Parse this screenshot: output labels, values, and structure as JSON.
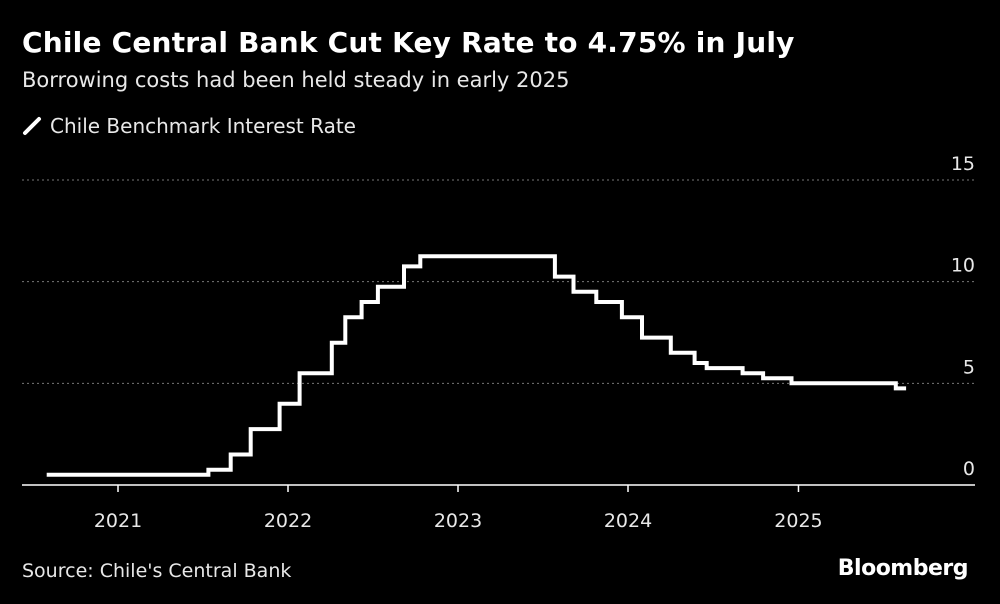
{
  "header": {
    "title": "Chile Central Bank Cut Key Rate to 4.75% in July",
    "subtitle": "Borrowing costs had been held steady in early 2025"
  },
  "footer": {
    "source": "Source: Chile's Central Bank",
    "brand": "Bloomberg"
  },
  "colors": {
    "background": "#000000",
    "line": "#ffffff",
    "grid": "#777777",
    "text": "#e8e8e8"
  },
  "chart_data": {
    "type": "line",
    "line_shape": "step",
    "series": [
      {
        "name": "Chile Benchmark Interest Rate",
        "x": [
          "2020-08-01",
          "2021-07-14",
          "2021-08-31",
          "2021-10-13",
          "2021-12-14",
          "2022-01-26",
          "2022-04-05",
          "2022-05-04",
          "2022-06-08",
          "2022-07-13",
          "2022-09-07",
          "2022-10-12",
          "2023-07-28",
          "2023-09-06",
          "2023-10-25",
          "2023-12-19",
          "2024-01-31",
          "2024-04-02",
          "2024-05-23",
          "2024-06-18",
          "2024-09-03",
          "2024-10-17",
          "2024-12-17",
          "2025-06-18",
          "2025-07-29",
          "2025-08-20"
        ],
        "y": [
          0.5,
          0.75,
          1.5,
          2.75,
          4.0,
          5.5,
          7.0,
          8.25,
          9.0,
          9.75,
          10.75,
          11.25,
          10.25,
          9.5,
          9.0,
          8.25,
          7.25,
          6.5,
          6.0,
          5.75,
          5.5,
          5.25,
          5.0,
          5.0,
          4.75,
          4.75
        ]
      }
    ],
    "xaxis": {
      "ticks": [
        "2021",
        "2022",
        "2023",
        "2024",
        "2025"
      ]
    },
    "yaxis": {
      "ticks": [
        "0",
        "5",
        "10",
        "15"
      ],
      "ylim": [
        0,
        15
      ],
      "position": "right"
    },
    "grid": "horizontal dotted",
    "legend": "top-left"
  }
}
